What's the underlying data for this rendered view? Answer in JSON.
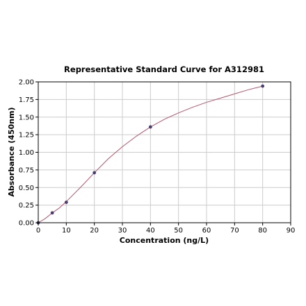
{
  "chart_data": {
    "type": "scatter",
    "title": "Representative Standard Curve for A312981",
    "xlabel": "Concentration (ng/L)",
    "ylabel": "Absorbance (450nm)",
    "xlim": [
      0,
      90
    ],
    "ylim": [
      0,
      2.0
    ],
    "xticks": [
      "0",
      "10",
      "20",
      "30",
      "40",
      "50",
      "60",
      "70",
      "80",
      "90"
    ],
    "yticks": [
      "0.00",
      "0.25",
      "0.50",
      "0.75",
      "1.00",
      "1.25",
      "1.50",
      "1.75",
      "2.00"
    ],
    "grid": true,
    "points": {
      "x": [
        0,
        5,
        10,
        20,
        40,
        80
      ],
      "y": [
        0.0,
        0.14,
        0.29,
        0.71,
        1.36,
        1.94
      ]
    },
    "fit_curve": {
      "x": [
        0,
        2.5,
        5,
        7.5,
        10,
        15,
        20,
        25,
        30,
        35,
        40,
        45,
        50,
        55,
        60,
        65,
        70,
        75,
        80
      ],
      "y": [
        0.0,
        0.06,
        0.14,
        0.21,
        0.3,
        0.5,
        0.71,
        0.91,
        1.08,
        1.23,
        1.36,
        1.47,
        1.56,
        1.64,
        1.71,
        1.77,
        1.83,
        1.89,
        1.94
      ]
    },
    "colors": {
      "curve": "#b5536b",
      "points": "#4a3f6e",
      "grid": "#cccccc"
    }
  }
}
